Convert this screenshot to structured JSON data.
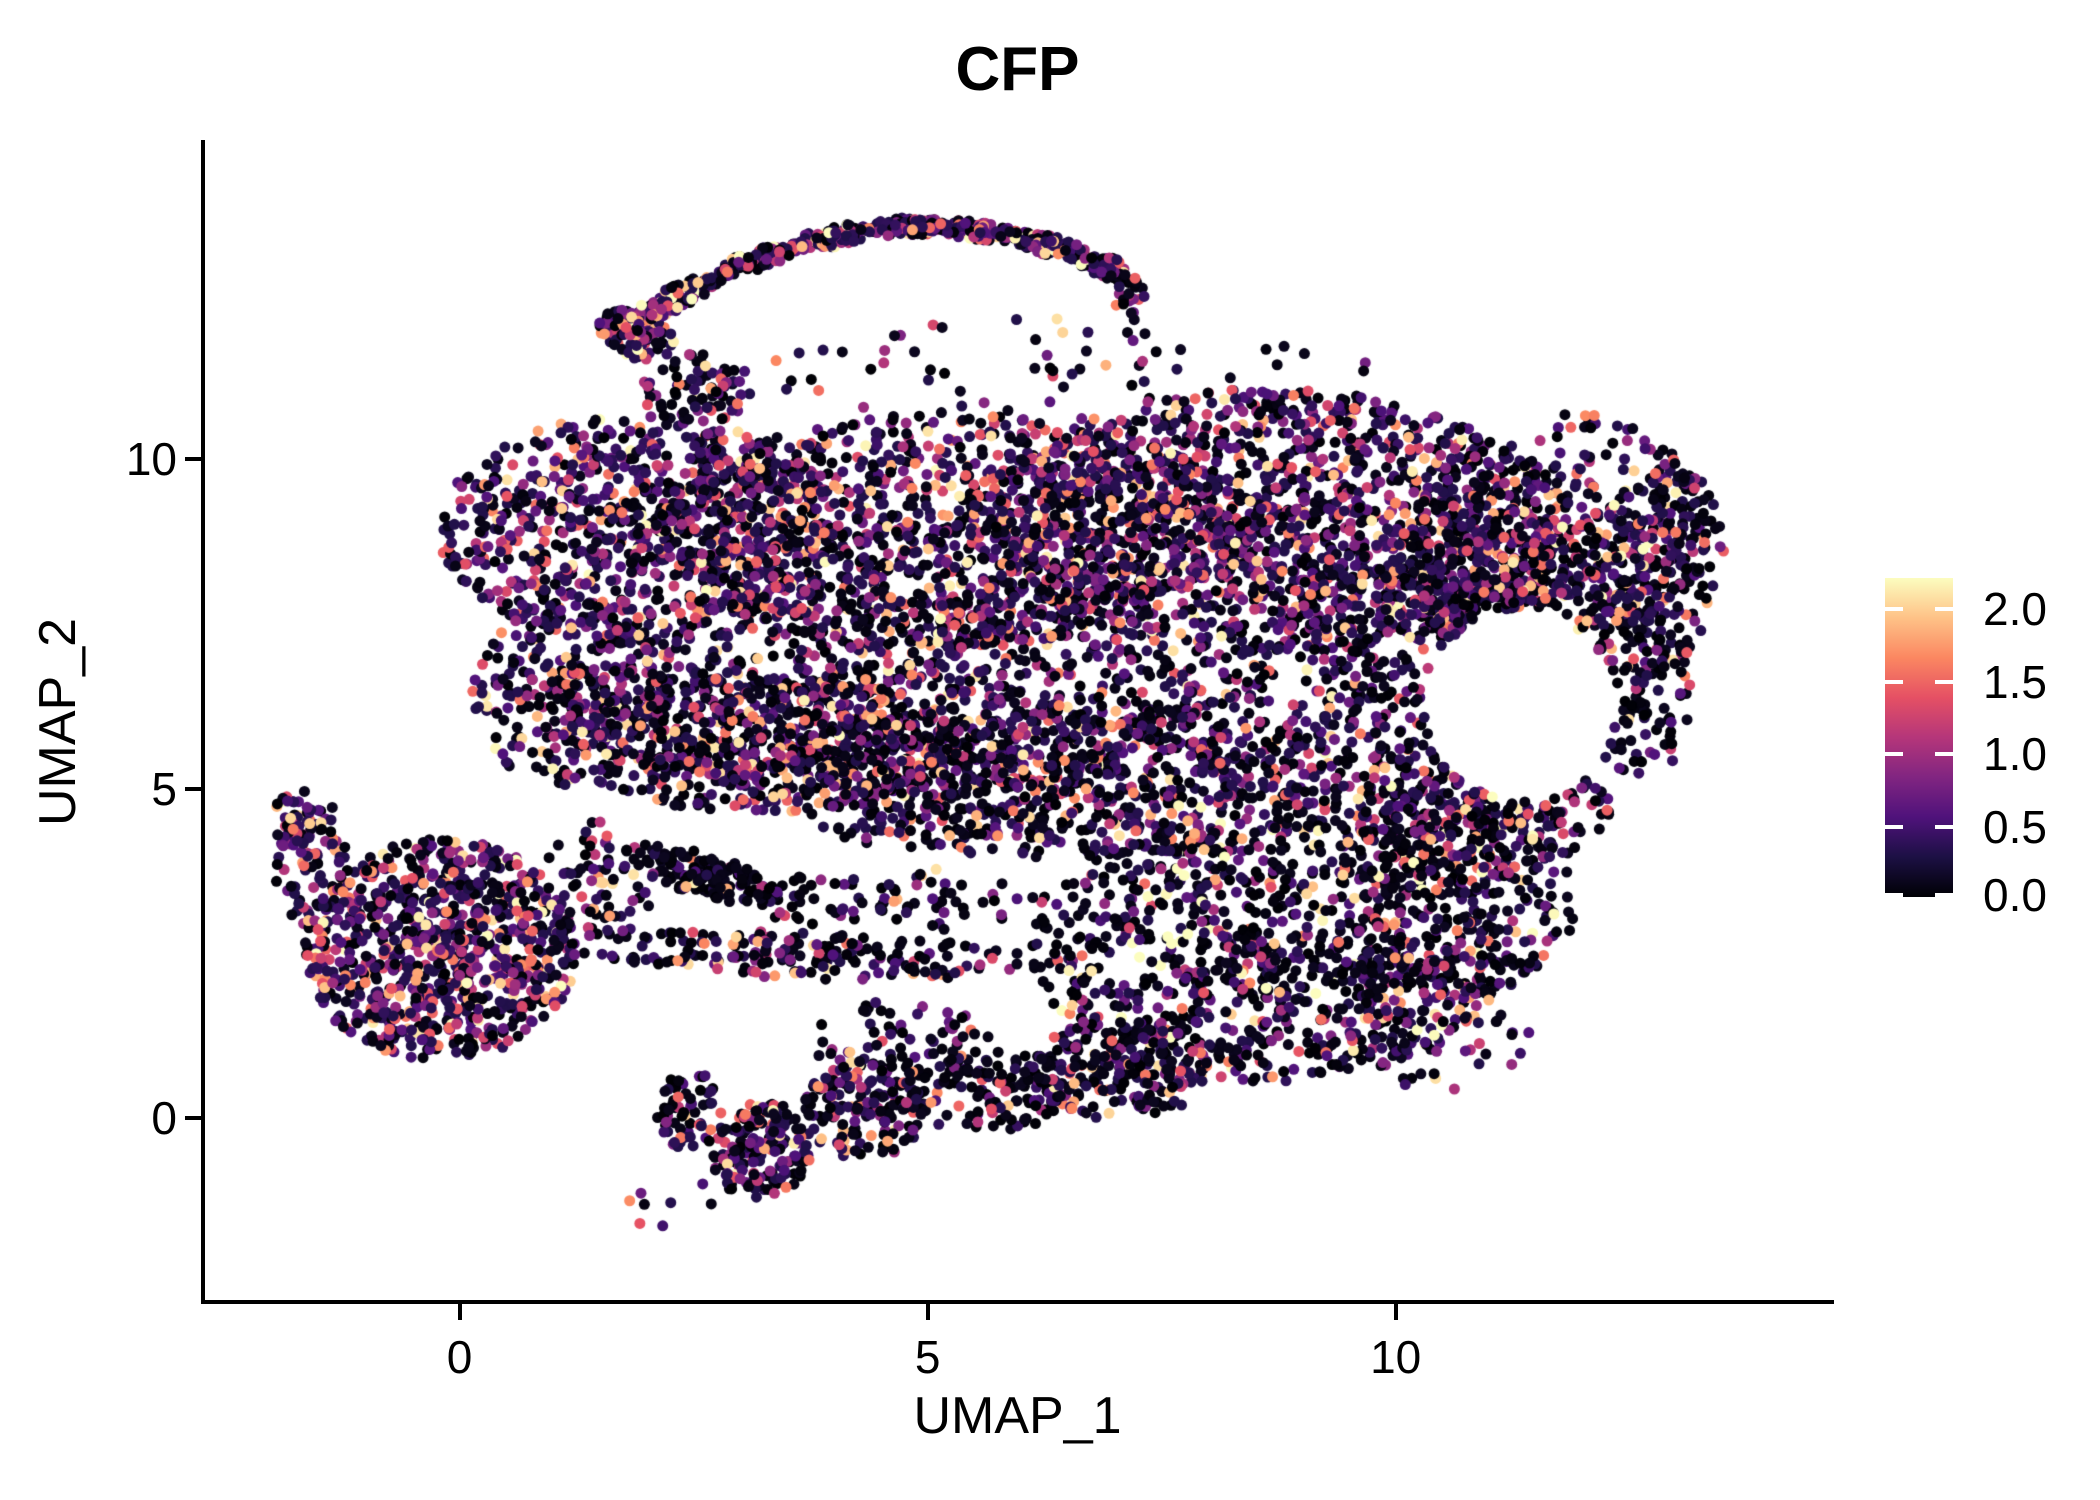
{
  "chart_data": {
    "type": "scatter",
    "title": "CFP",
    "xlabel": "UMAP_1",
    "ylabel": "UMAP_2",
    "x_domain": [
      -2.72,
      14.64
    ],
    "y_domain": [
      -2.79,
      14.81
    ],
    "x_ticks": [
      0,
      5,
      10
    ],
    "x_tick_labels": [
      "0",
      "5",
      "10"
    ],
    "y_ticks": [
      0,
      5,
      10
    ],
    "y_tick_labels": [
      "0",
      "5",
      "10"
    ],
    "grid": false,
    "legend_position": "right",
    "point_radius_px": 5.5,
    "colormap": {
      "name": "magma",
      "stops": [
        "#000004",
        "#1c1044",
        "#4f127b",
        "#812581",
        "#b5367a",
        "#e55064",
        "#fb8761",
        "#fec287",
        "#fcfdbf"
      ]
    },
    "color_scale": {
      "min": 0.0,
      "max": 2.2,
      "legend_ticks": [
        0.0,
        0.5,
        1.0,
        1.5,
        2.0
      ],
      "legend_tick_labels": [
        "0.0",
        "0.5",
        "1.0",
        "1.5",
        "2.0"
      ]
    },
    "expr_model": {
      "zero_value_max": 0.12,
      "base": 0.3,
      "span": 1.9,
      "power": 2.6
    },
    "hole": {
      "cx": 11.32,
      "cy": 6.27,
      "rx": 1.02,
      "ry": 1.44
    },
    "seed": 42,
    "blob_fields": [
      "name",
      "cx",
      "cy",
      "rx",
      "ry",
      "rot_deg",
      "n",
      "zero_frac",
      "hot"
    ],
    "blobs": [
      [
        "arc-left-clump",
        1.9,
        11.9,
        0.45,
        0.35,
        -40,
        90,
        0.3,
        1.15
      ],
      [
        "arc-seg-1",
        2.3,
        12.44,
        0.7,
        0.16,
        37,
        110,
        0.25,
        1.15
      ],
      [
        "arc-seg-2",
        3.21,
        13.05,
        0.5,
        0.15,
        28,
        100,
        0.25,
        1.15
      ],
      [
        "arc-seg-3",
        3.99,
        13.37,
        0.45,
        0.15,
        17,
        100,
        0.25,
        1.15
      ],
      [
        "arc-seg-4",
        4.77,
        13.52,
        0.45,
        0.14,
        2,
        110,
        0.25,
        1.15
      ],
      [
        "arc-seg-5",
        5.54,
        13.46,
        0.45,
        0.14,
        -10,
        105,
        0.25,
        1.15
      ],
      [
        "arc-seg-6",
        6.31,
        13.24,
        0.45,
        0.15,
        -22,
        95,
        0.25,
        1.15
      ],
      [
        "arc-seg-7",
        6.85,
        12.95,
        0.3,
        0.18,
        -30,
        55,
        0.3,
        1.15
      ],
      [
        "arc-tail-right",
        7.15,
        12.55,
        0.18,
        0.35,
        0,
        25,
        0.5,
        1.0
      ],
      [
        "arc-connector",
        2.55,
        11.05,
        0.6,
        0.55,
        0,
        75,
        0.5,
        1.0
      ],
      [
        "sparse-under-arc",
        6.5,
        11.35,
        3.3,
        0.9,
        0,
        70,
        0.55,
        1.0
      ],
      [
        "main-upper-left",
        1.92,
        8.92,
        2.14,
        1.75,
        0,
        850,
        0.33,
        1.0
      ],
      [
        "main-upper-mid",
        5.24,
        8.92,
        3.2,
        1.75,
        0,
        1150,
        0.4,
        1.0
      ],
      [
        "main-upper-right",
        8.65,
        9.07,
        3.0,
        2.0,
        0,
        1450,
        0.34,
        1.0
      ],
      [
        "main-right-lobe",
        11.75,
        8.92,
        1.6,
        1.8,
        0,
        500,
        0.4,
        1.0
      ],
      [
        "main-right-tip",
        12.87,
        8.47,
        0.65,
        1.5,
        0,
        140,
        0.55,
        1.0
      ],
      [
        "main-mid-band",
        4.49,
        6.49,
        3.5,
        1.65,
        0,
        950,
        0.42,
        1.0
      ],
      [
        "main-mid-left",
        3.21,
        5.66,
        2.1,
        1.05,
        0,
        400,
        0.42,
        1.0
      ],
      [
        "main-mid-right",
        9.83,
        6.34,
        2.15,
        2.1,
        0,
        650,
        0.45,
        1.0
      ],
      [
        "main-lower-band",
        6.3,
        5.13,
        3.2,
        1.2,
        0,
        800,
        0.45,
        1.0
      ],
      [
        "main-lower-left-foot",
        1.23,
        6.49,
        1.1,
        1.5,
        0,
        280,
        0.36,
        1.0
      ],
      [
        "bottom-right-lobe",
        8.65,
        2.55,
        2.55,
        2.0,
        0,
        950,
        0.55,
        1.2
      ],
      [
        "bottom-right-upper",
        10.68,
        3.61,
        1.3,
        1.8,
        0,
        350,
        0.5,
        1.1
      ],
      [
        "ring-right-of-hole",
        12.61,
        6.49,
        0.55,
        1.4,
        0,
        130,
        0.6,
        1.0
      ],
      [
        "below-hole",
        10.9,
        4.67,
        1.4,
        0.9,
        0,
        220,
        0.5,
        1.0
      ],
      [
        "above-hole",
        11.11,
        8.01,
        1.4,
        0.9,
        0,
        260,
        0.4,
        1.0
      ],
      [
        "dark-streak",
        2.6,
        3.7,
        0.9,
        0.32,
        -25,
        160,
        0.72,
        1.0
      ],
      [
        "thin-bottom-band",
        3.63,
        2.47,
        2.6,
        0.35,
        -3,
        190,
        0.62,
        1.0
      ],
      [
        "gap-filler",
        4.7,
        3.3,
        1.6,
        0.5,
        0,
        80,
        0.6,
        1.0
      ],
      [
        "left-cluster",
        -0.21,
        2.55,
        1.45,
        1.7,
        0,
        900,
        0.3,
        1.05
      ],
      [
        "left-cluster-arm",
        -1.6,
        3.92,
        0.38,
        1.05,
        0,
        90,
        0.3,
        1.0
      ],
      [
        "left-cluster-tip",
        -1.79,
        4.52,
        0.2,
        0.4,
        0,
        30,
        0.25,
        1.35
      ],
      [
        "left-connector",
        1.5,
        3.61,
        0.6,
        0.9,
        0,
        70,
        0.5,
        1.0
      ],
      [
        "bottom-blob-1",
        3.21,
        -0.49,
        0.55,
        0.75,
        0,
        180,
        0.45,
        1.0
      ],
      [
        "bottom-blob-2",
        4.33,
        0.12,
        0.65,
        0.75,
        0,
        160,
        0.5,
        1.0
      ],
      [
        "bottom-band-3",
        5.66,
        0.42,
        1.05,
        0.6,
        0,
        140,
        0.62,
        1.0
      ],
      [
        "bottom-blob-4",
        7.05,
        0.73,
        0.95,
        0.75,
        0,
        210,
        0.52,
        1.0
      ],
      [
        "bottom-trail-left",
        2.46,
        0.12,
        0.38,
        0.6,
        0,
        60,
        0.5,
        1.0
      ],
      [
        "bottom-sparse-upper",
        4.7,
        1.18,
        0.95,
        0.6,
        0,
        70,
        0.6,
        1.0
      ],
      [
        "bottom-stragglers",
        2.2,
        -1.25,
        0.5,
        0.45,
        0,
        8,
        0.5,
        1.0
      ],
      [
        "right-bottom-trail",
        10.4,
        1.1,
        1.1,
        0.7,
        0,
        55,
        0.55,
        1.1
      ]
    ]
  }
}
